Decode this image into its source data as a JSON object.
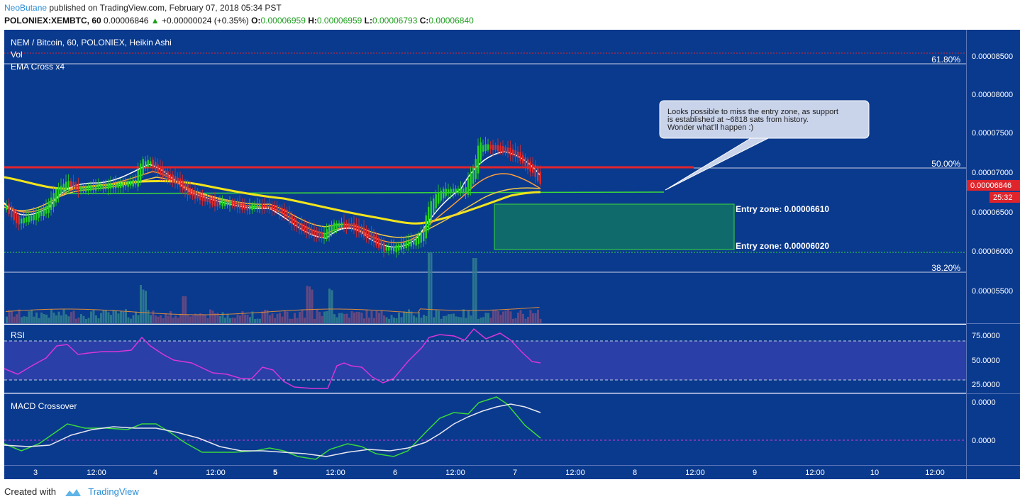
{
  "header": {
    "author": "NeoButane",
    "published": "published on TradingView.com, February 07, 2018 05:34 PST",
    "symbol": "POLONIEX:XEMBTC, 60",
    "last": "0.00006846",
    "change": "+0.00000024 (+0.35%)",
    "o_label": "O:",
    "o": "0.00006959",
    "h_label": "H:",
    "h": "0.00006959",
    "l_label": "L:",
    "l": "0.00006793",
    "c_label": "C:",
    "c": "0.00006840"
  },
  "chart": {
    "title": "NEM / Bitcoin, 60, POLONIEX, Heikin Ashi",
    "vol_label": "Vol",
    "ema_label": "EMA Cross x4",
    "price_ticks": [
      "0.00008500",
      "0.00008000",
      "0.00007500",
      "0.00007000",
      "0.00006500",
      "0.00006000",
      "0.00005500"
    ],
    "price_tag": "0.00006846",
    "countdown": "25:32",
    "fib_618": "61.80%",
    "fib_50": "50.00%",
    "fib_382": "38.20%",
    "entry_top": "Entry zone: 0.00006610",
    "entry_bottom": "Entry zone: 0.00006020",
    "callout": [
      "Looks possible to miss the entry zone, as support",
      "is established at ~6818 sats from history.",
      "Wonder what'll happen :)"
    ],
    "colors": {
      "bg": "#0a3a8e",
      "candle_up": "#27d327",
      "candle_down": "#e02b2b",
      "ema_yellow": "#f2e41c",
      "resistance": "#e0242c",
      "support": "#3ad83a",
      "zone": "#0f6b6b"
    }
  },
  "rsi": {
    "label": "RSI",
    "ticks": [
      "75.0000",
      "50.0000",
      "25.0000"
    ]
  },
  "macd": {
    "label": "MACD Crossover",
    "ticks": [
      "0.0000",
      "0.0000"
    ]
  },
  "time_axis": [
    "3",
    "12:00",
    "4",
    "12:00",
    "5",
    "12:00",
    "6",
    "12:00",
    "7",
    "12:00",
    "8",
    "12:00",
    "9",
    "12:00",
    "10",
    "12:00"
  ],
  "footer": {
    "created": "Created with",
    "brand": "TradingView"
  }
}
